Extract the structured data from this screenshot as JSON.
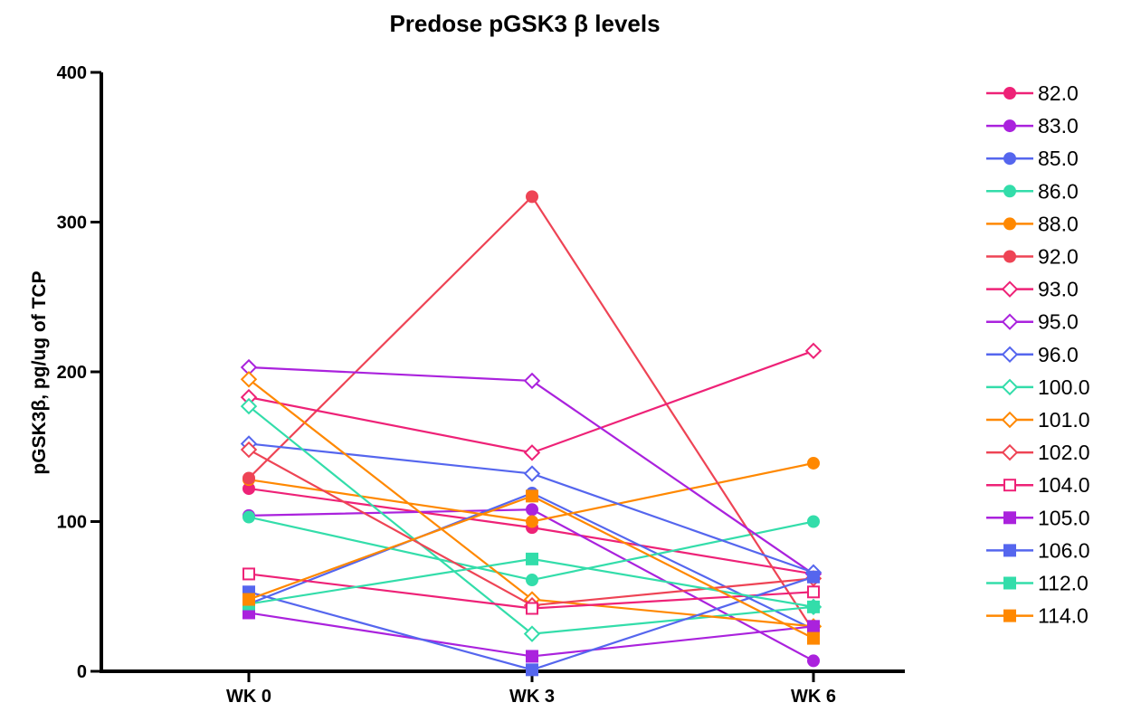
{
  "chart_data": {
    "type": "line",
    "title": "Predose pGSK3   β levels",
    "xlabel": "",
    "ylabel": "pGSK3β, pg/ug of TCP",
    "categories": [
      "WK 0",
      "WK 3",
      "WK 6"
    ],
    "ylim": [
      0,
      400
    ],
    "yticks": [
      0,
      100,
      200,
      300,
      400
    ],
    "grid": false,
    "legend_position": "right",
    "series": [
      {
        "name": "82.0",
        "color": "#ee2277",
        "marker": "circle",
        "filled": true,
        "values": [
          122,
          96,
          65
        ]
      },
      {
        "name": "83.0",
        "color": "#aa22dd",
        "marker": "circle",
        "filled": true,
        "values": [
          104,
          108,
          7
        ]
      },
      {
        "name": "85.0",
        "color": "#5566ee",
        "marker": "circle",
        "filled": true,
        "values": [
          45,
          119,
          28
        ]
      },
      {
        "name": "86.0",
        "color": "#33ddaa",
        "marker": "circle",
        "filled": true,
        "values": [
          103,
          61,
          100
        ]
      },
      {
        "name": "88.0",
        "color": "#ff8800",
        "marker": "circle",
        "filled": true,
        "values": [
          128,
          100,
          139
        ]
      },
      {
        "name": "92.0",
        "color": "#ee4455",
        "marker": "circle",
        "filled": true,
        "values": [
          129,
          317,
          27
        ]
      },
      {
        "name": "93.0",
        "color": "#ee2277",
        "marker": "diamond",
        "filled": false,
        "values": [
          183,
          146,
          214
        ]
      },
      {
        "name": "95.0",
        "color": "#aa22dd",
        "marker": "diamond",
        "filled": false,
        "values": [
          203,
          194,
          65
        ]
      },
      {
        "name": "96.0",
        "color": "#5566ee",
        "marker": "diamond",
        "filled": false,
        "values": [
          152,
          132,
          66
        ]
      },
      {
        "name": "100.0",
        "color": "#33ddaa",
        "marker": "diamond",
        "filled": false,
        "values": [
          177,
          25,
          43
        ]
      },
      {
        "name": "101.0",
        "color": "#ff8800",
        "marker": "diamond",
        "filled": false,
        "values": [
          195,
          48,
          30
        ]
      },
      {
        "name": "102.0",
        "color": "#ee4455",
        "marker": "diamond",
        "filled": false,
        "values": [
          148,
          44,
          62
        ]
      },
      {
        "name": "104.0",
        "color": "#ee2277",
        "marker": "square",
        "filled": false,
        "values": [
          65,
          42,
          53
        ]
      },
      {
        "name": "105.0",
        "color": "#aa22dd",
        "marker": "square",
        "filled": true,
        "values": [
          39,
          10,
          30
        ]
      },
      {
        "name": "106.0",
        "color": "#5566ee",
        "marker": "square",
        "filled": true,
        "values": [
          53,
          1,
          63
        ]
      },
      {
        "name": "112.0",
        "color": "#33ddaa",
        "marker": "square",
        "filled": true,
        "values": [
          45,
          75,
          43
        ]
      },
      {
        "name": "114.0",
        "color": "#ff8800",
        "marker": "square",
        "filled": true,
        "values": [
          48,
          117,
          22
        ]
      }
    ]
  }
}
